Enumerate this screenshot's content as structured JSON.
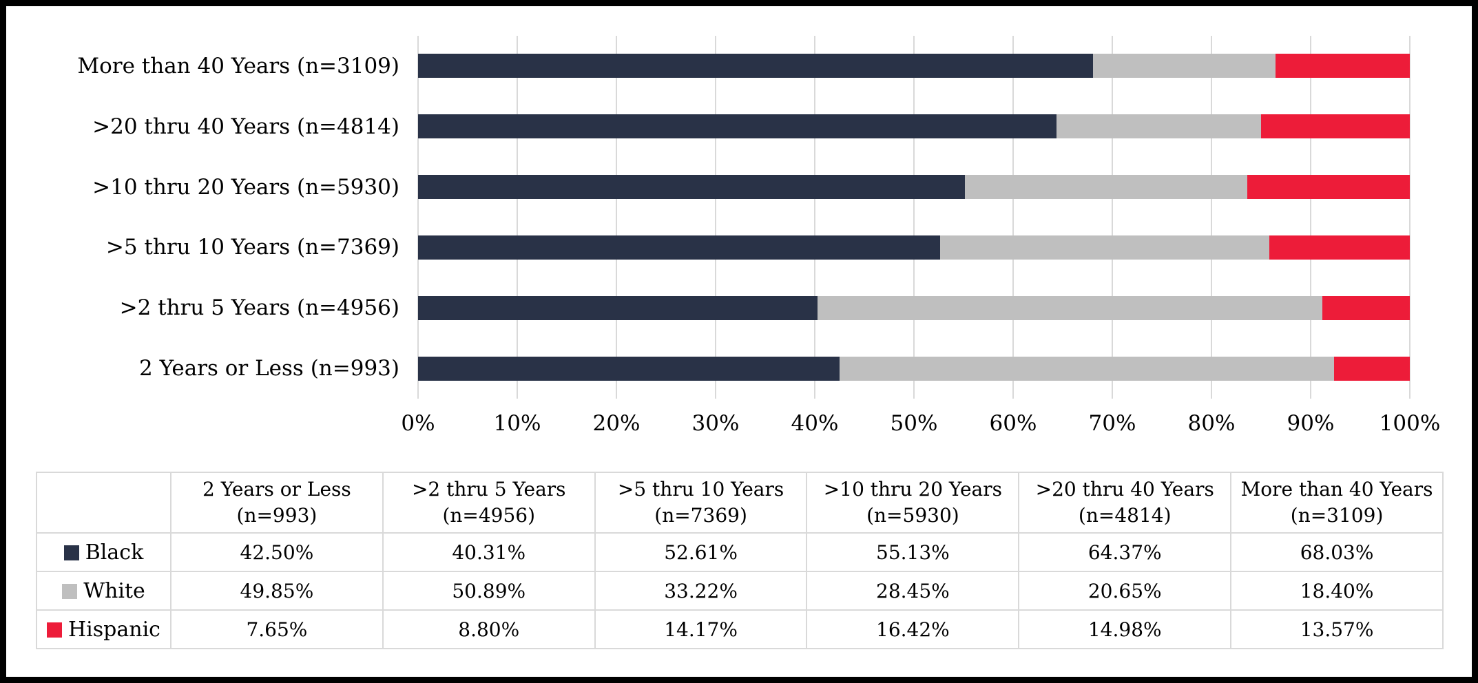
{
  "chart_data": {
    "type": "bar",
    "orientation": "horizontal-stacked",
    "title": "",
    "xlabel": "",
    "ylabel": "",
    "xlim": [
      0,
      100
    ],
    "grid": true,
    "x_ticks": [
      "0%",
      "10%",
      "20%",
      "30%",
      "40%",
      "50%",
      "60%",
      "70%",
      "80%",
      "90%",
      "100%"
    ],
    "categories": [
      "More than 40 Years (n=3109)",
      ">20 thru 40 Years (n=4814)",
      ">10 thru 20 Years (n=5930)",
      ">5 thru 10 Years (n=7369)",
      ">2 thru 5 Years (n=4956)",
      "2 Years or Less (n=993)"
    ],
    "series": [
      {
        "name": "Black",
        "color": "#293247",
        "values": [
          68.03,
          64.37,
          55.13,
          52.61,
          40.31,
          42.5
        ]
      },
      {
        "name": "White",
        "color": "#BFBFBF",
        "values": [
          18.4,
          20.65,
          28.45,
          33.22,
          50.89,
          49.85
        ]
      },
      {
        "name": "Hispanic",
        "color": "#ED1C39",
        "values": [
          13.57,
          14.98,
          16.42,
          14.17,
          8.8,
          7.65
        ]
      }
    ],
    "legend_position": "table-left-column"
  },
  "table": {
    "columns": [
      "2 Years or Less (n=993)",
      ">2 thru 5 Years (n=4956)",
      ">5 thru 10 Years (n=7369)",
      ">10 thru 20 Years (n=5930)",
      ">20 thru 40 Years (n=4814)",
      "More than 40 Years (n=3109)"
    ],
    "rows": [
      {
        "label": "Black",
        "swatch": "#293247",
        "values": [
          "42.50%",
          "40.31%",
          "52.61%",
          "55.13%",
          "64.37%",
          "68.03%"
        ]
      },
      {
        "label": "White",
        "swatch": "#BFBFBF",
        "values": [
          "49.85%",
          "50.89%",
          "33.22%",
          "28.45%",
          "20.65%",
          "18.40%"
        ]
      },
      {
        "label": "Hispanic",
        "swatch": "#ED1C39",
        "values": [
          "7.65%",
          "8.80%",
          "14.17%",
          "16.42%",
          "14.98%",
          "13.57%"
        ]
      }
    ]
  },
  "colors": {
    "gridline": "#D9D9D9",
    "table_border": "#D9D9D9",
    "frame_border": "#000000",
    "background": "#FFFFFF"
  }
}
